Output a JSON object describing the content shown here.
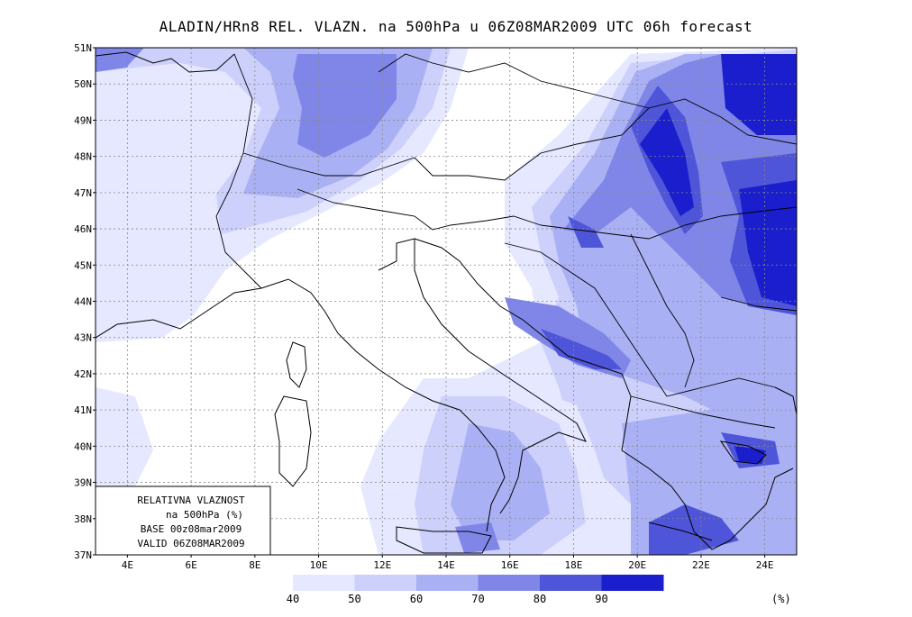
{
  "title": "ALADIN/HRn8 REL. VLAZN. na 500hPa u 06Z08MAR2009 UTC 06h forecast",
  "map": {
    "lat_labels": [
      "51N",
      "50N",
      "49N",
      "48N",
      "47N",
      "46N",
      "45N",
      "44N",
      "43N",
      "42N",
      "41N",
      "40N",
      "39N",
      "38N",
      "37N"
    ],
    "lon_labels": [
      "4E",
      "6E",
      "8E",
      "10E",
      "12E",
      "14E",
      "16E",
      "18E",
      "20E",
      "22E",
      "24E"
    ],
    "lat_range": [
      37,
      51
    ],
    "lon_range": [
      3,
      25
    ],
    "gridlines": true,
    "variable": "relative humidity at 500 hPa"
  },
  "info_box": {
    "line1": "RELATIVNA VLAZNOST",
    "line2": "na 500hPa (%)",
    "line3": "BASE 00z08mar2009",
    "line4": "VALID 06Z08MAR2009"
  },
  "colorbar": {
    "labels": [
      "40",
      "50",
      "60",
      "70",
      "80",
      "90"
    ],
    "unit": "(%)",
    "colors": [
      "#e6e8ff",
      "#ccd0fb",
      "#aab0f4",
      "#7f86e8",
      "#4f55d8",
      "#1a1ecc"
    ]
  }
}
